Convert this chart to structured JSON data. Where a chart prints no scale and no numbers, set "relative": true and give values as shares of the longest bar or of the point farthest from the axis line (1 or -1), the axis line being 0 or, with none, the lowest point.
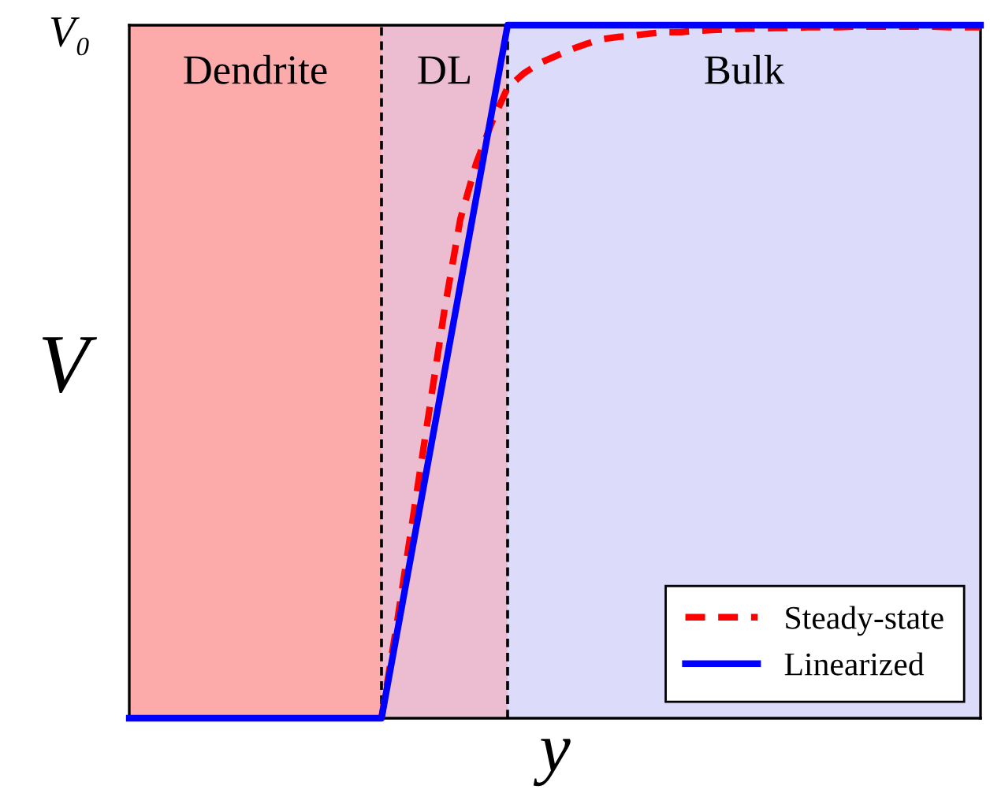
{
  "chart_data": {
    "type": "line",
    "relative": true,
    "xlabel": "y",
    "ylabel": "V",
    "annotations": [
      "V₀",
      "Dendrite",
      "DL",
      "Bulk"
    ],
    "categories": [
      null,
      null,
      null,
      null,
      null,
      null,
      null,
      null,
      null,
      null,
      null,
      null,
      null,
      null,
      null,
      null,
      null,
      null,
      null,
      null,
      null,
      null,
      null,
      null,
      null,
      null,
      null,
      null,
      null,
      null,
      null,
      null,
      null,
      null,
      null,
      null,
      null,
      null,
      null,
      null,
      null,
      null,
      null,
      null,
      null,
      null,
      null,
      null,
      null,
      null,
      null,
      null,
      null,
      null,
      null
    ],
    "series": [
      {
        "name": "Linearized",
        "color": "#0000ff",
        "line_style": "solid",
        "values": [
          0,
          0,
          0,
          0,
          0,
          0,
          0,
          0,
          0,
          0,
          0,
          0,
          0,
          0,
          0,
          0,
          0,
          0.125,
          0.25,
          0.375,
          0.5,
          0.625,
          0.75,
          0.875,
          1,
          1,
          1,
          1,
          1,
          1,
          1,
          1,
          1,
          1,
          1,
          1,
          1,
          1,
          1,
          1,
          1,
          1,
          1,
          1,
          1,
          1,
          1,
          1,
          1,
          1,
          1,
          1,
          1,
          1,
          1
        ]
      },
      {
        "name": "Steady-state",
        "color": "#ff0000",
        "line_style": "dashed",
        "values": [
          null,
          null,
          null,
          null,
          null,
          null,
          null,
          null,
          null,
          null,
          null,
          null,
          null,
          null,
          null,
          null,
          0,
          0.14,
          0.29,
          0.44,
          0.59,
          0.72,
          0.8,
          0.86,
          0.91,
          0.93,
          0.945,
          0.955,
          0.965,
          0.973,
          0.98,
          0.983,
          0.985,
          0.988,
          0.99,
          0.99,
          0.992,
          0.993,
          0.994,
          0.995,
          0.995,
          0.996,
          0.996,
          0.997,
          0.997,
          0.997,
          0.998,
          0.998,
          0.998,
          0.998,
          0.998,
          0.998,
          0.997,
          0.997,
          0.997
        ]
      }
    ],
    "legend": "bottom right"
  }
}
